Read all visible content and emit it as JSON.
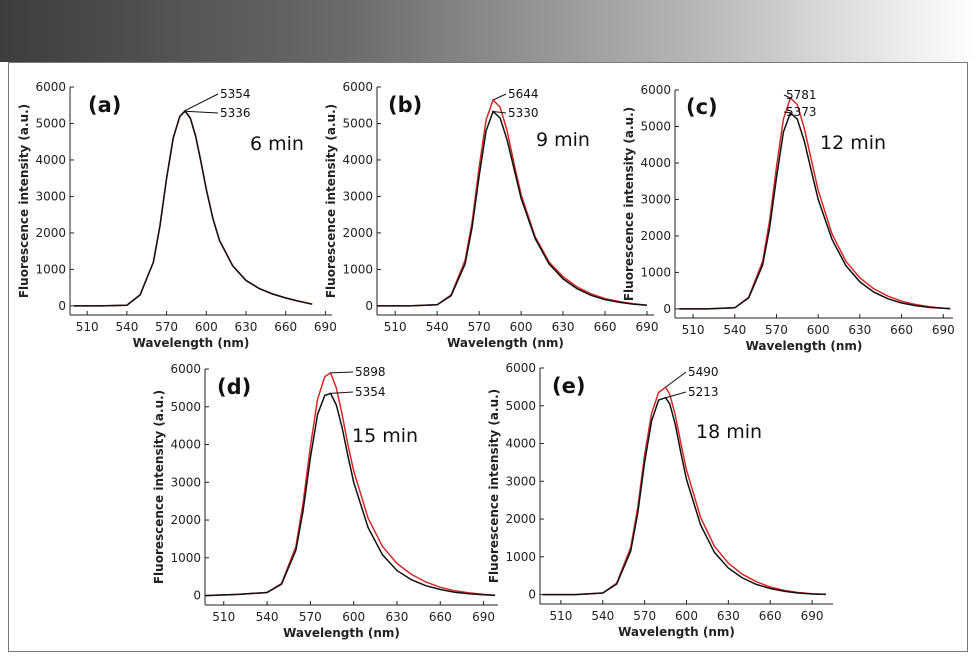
{
  "colors": {
    "series_a": "#111111",
    "series_b": "#d42828",
    "banner_dark": "#3d3d3d"
  },
  "chart_data": [
    {
      "type": "line",
      "panel": "(a)",
      "time_label": "6 min",
      "xlabel": "Wavelength (nm)",
      "ylabel": "Fluorescence intensity (a.u.)",
      "xlim": [
        497,
        695
      ],
      "ylim": [
        -250,
        6000
      ],
      "xticks": [
        510,
        540,
        570,
        600,
        630,
        660,
        690
      ],
      "yticks": [
        0,
        1000,
        2000,
        3000,
        4000,
        5000,
        6000
      ],
      "x": [
        500,
        520,
        540,
        550,
        560,
        565,
        570,
        575,
        580,
        584,
        588,
        592,
        596,
        600,
        605,
        610,
        620,
        630,
        640,
        650,
        660,
        670,
        680
      ],
      "series": [
        {
          "name": "red",
          "color": "#d42828",
          "peak": 5354,
          "values": [
            0,
            0,
            20,
            300,
            1200,
            2200,
            3500,
            4600,
            5200,
            5354,
            5150,
            4650,
            3950,
            3200,
            2400,
            1800,
            1100,
            700,
            480,
            330,
            220,
            130,
            50
          ]
        },
        {
          "name": "black",
          "color": "#111111",
          "peak": 5336,
          "values": [
            0,
            0,
            20,
            300,
            1200,
            2200,
            3500,
            4600,
            5190,
            5336,
            5140,
            4640,
            3940,
            3190,
            2390,
            1790,
            1090,
            695,
            475,
            325,
            215,
            125,
            45
          ]
        }
      ],
      "annotations": [
        "5354",
        "5336"
      ]
    },
    {
      "type": "line",
      "panel": "(b)",
      "time_label": "9 min",
      "xlabel": "Wavelength (nm)",
      "ylabel": "Fluorescence intensity (a.u.)",
      "xlim": [
        497,
        695
      ],
      "ylim": [
        -250,
        6000
      ],
      "xticks": [
        510,
        540,
        570,
        600,
        630,
        660,
        690
      ],
      "yticks": [
        0,
        1000,
        2000,
        3000,
        4000,
        5000,
        6000
      ],
      "x": [
        497,
        520,
        540,
        550,
        560,
        565,
        570,
        575,
        580,
        585,
        590,
        595,
        600,
        610,
        620,
        630,
        640,
        650,
        660,
        670,
        680,
        690
      ],
      "series": [
        {
          "name": "red",
          "color": "#d42828",
          "peak": 5644,
          "values": [
            0,
            0,
            30,
            300,
            1250,
            2300,
            3800,
            5100,
            5644,
            5450,
            4800,
            3900,
            3050,
            1900,
            1200,
            800,
            520,
            330,
            200,
            120,
            60,
            20
          ]
        },
        {
          "name": "black",
          "color": "#111111",
          "peak": 5330,
          "values": [
            0,
            0,
            30,
            280,
            1150,
            2150,
            3550,
            4800,
            5330,
            5150,
            4550,
            3750,
            2950,
            1850,
            1150,
            740,
            470,
            290,
            170,
            100,
            50,
            15
          ]
        }
      ],
      "annotations": [
        "5644",
        "5330"
      ]
    },
    {
      "type": "line",
      "panel": "(c)",
      "time_label": "12 min",
      "xlabel": "Wavelength (nm)",
      "ylabel": "Fluorescence intensity (a.u.)",
      "xlim": [
        497,
        697
      ],
      "ylim": [
        -250,
        6000
      ],
      "xticks": [
        510,
        540,
        570,
        600,
        630,
        660,
        690
      ],
      "yticks": [
        0,
        1000,
        2000,
        3000,
        4000,
        5000,
        6000
      ],
      "x": [
        500,
        520,
        540,
        550,
        560,
        565,
        570,
        575,
        580,
        585,
        590,
        595,
        600,
        610,
        620,
        630,
        640,
        650,
        660,
        670,
        680,
        690,
        695
      ],
      "series": [
        {
          "name": "red",
          "color": "#d42828",
          "peak": 5781,
          "values": [
            0,
            0,
            30,
            320,
            1300,
            2400,
            3900,
            5200,
            5781,
            5600,
            4950,
            4100,
            3250,
            2050,
            1300,
            850,
            550,
            350,
            210,
            120,
            60,
            20,
            10
          ]
        },
        {
          "name": "black",
          "color": "#111111",
          "peak": 5373,
          "values": [
            0,
            0,
            30,
            300,
            1200,
            2200,
            3600,
            4850,
            5373,
            5200,
            4600,
            3800,
            3000,
            1900,
            1180,
            740,
            460,
            280,
            160,
            90,
            40,
            15,
            5
          ]
        }
      ],
      "annotations": [
        "5781",
        "5373"
      ]
    },
    {
      "type": "line",
      "panel": "(d)",
      "time_label": "15 min",
      "xlabel": "Wavelength (nm)",
      "ylabel": "Fluorescence intensity (a.u.)",
      "xlim": [
        497,
        700
      ],
      "ylim": [
        -250,
        6000
      ],
      "xticks": [
        510,
        540,
        570,
        600,
        630,
        660,
        690
      ],
      "yticks": [
        0,
        1000,
        2000,
        3000,
        4000,
        5000,
        6000
      ],
      "x": [
        497,
        520,
        540,
        550,
        560,
        565,
        570,
        575,
        580,
        584,
        588,
        592,
        596,
        600,
        610,
        620,
        630,
        640,
        650,
        660,
        670,
        680,
        690,
        698
      ],
      "series": [
        {
          "name": "red",
          "color": "#d42828",
          "peak": 5898,
          "values": [
            0,
            30,
            80,
            320,
            1300,
            2450,
            3950,
            5200,
            5800,
            5898,
            5500,
            4800,
            4000,
            3300,
            2050,
            1300,
            850,
            560,
            360,
            220,
            130,
            70,
            30,
            10
          ]
        },
        {
          "name": "black",
          "color": "#111111",
          "peak": 5354,
          "values": [
            0,
            30,
            80,
            300,
            1200,
            2250,
            3650,
            4800,
            5300,
            5354,
            5050,
            4450,
            3700,
            3000,
            1800,
            1080,
            660,
            420,
            260,
            160,
            90,
            50,
            20,
            5
          ]
        }
      ],
      "annotations": [
        "5898",
        "5354"
      ]
    },
    {
      "type": "line",
      "panel": "(e)",
      "time_label": "18 min",
      "xlabel": "Wavelength (nm)",
      "ylabel": "Fluorescence intensity (a.u.)",
      "xlim": [
        495,
        705
      ],
      "ylim": [
        -250,
        6000
      ],
      "xticks": [
        510,
        540,
        570,
        600,
        630,
        660,
        690
      ],
      "yticks": [
        0,
        1000,
        2000,
        3000,
        4000,
        5000,
        6000
      ],
      "x": [
        497,
        520,
        540,
        550,
        560,
        565,
        570,
        575,
        580,
        585,
        588,
        592,
        596,
        600,
        610,
        620,
        630,
        640,
        650,
        660,
        670,
        680,
        690,
        700
      ],
      "series": [
        {
          "name": "red",
          "color": "#d42828",
          "peak": 5490,
          "values": [
            0,
            0,
            40,
            300,
            1250,
            2300,
            3700,
            4800,
            5350,
            5490,
            5300,
            4750,
            4000,
            3300,
            2050,
            1280,
            830,
            540,
            340,
            200,
            110,
            55,
            20,
            5
          ]
        },
        {
          "name": "black",
          "color": "#111111",
          "peak": 5213,
          "values": [
            0,
            0,
            40,
            280,
            1150,
            2150,
            3500,
            4600,
            5150,
            5213,
            5050,
            4500,
            3750,
            3050,
            1850,
            1120,
            700,
            440,
            270,
            160,
            90,
            40,
            15,
            5
          ]
        }
      ],
      "annotations": [
        "5490",
        "5213"
      ]
    }
  ]
}
